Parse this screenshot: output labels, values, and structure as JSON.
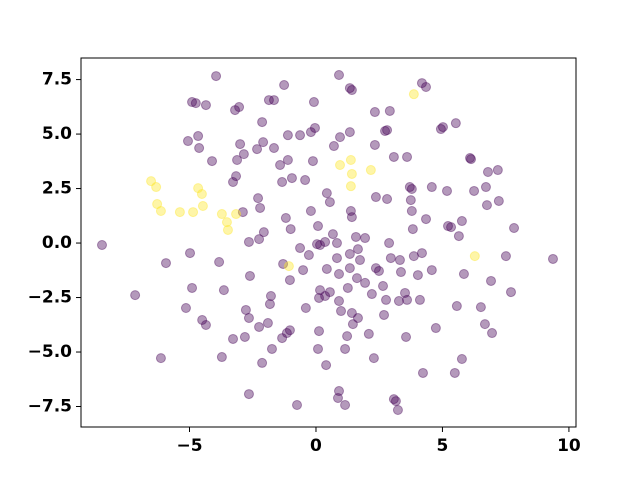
{
  "chart_data": {
    "type": "scatter",
    "alpha": 0.4,
    "xlim": [
      -9.29,
      10.28
    ],
    "ylim": [
      -8.44,
      8.49
    ],
    "xticks": [
      {
        "value": -5,
        "label": "−5"
      },
      0,
      5,
      10
    ],
    "yticks": [
      {
        "value": -7.5,
        "label": "−7.5"
      },
      {
        "value": -5,
        "label": "−5.0"
      },
      {
        "value": -2.5,
        "label": "−2.5"
      },
      {
        "value": 0,
        "label": "0.0"
      },
      2.5,
      {
        "value": 5,
        "label": "5.0"
      },
      7.5
    ],
    "series": [
      {
        "color": "#440154",
        "x": [
          -8.46,
          9.37,
          -7.15,
          -5.93,
          -6.13,
          -5.14,
          -4.9,
          -4.98,
          -4.9,
          -4.75,
          -4.35,
          -3.95,
          -5.06,
          -4.66,
          -4.62,
          -4.11,
          -4.5,
          -4.35,
          -3.83,
          -3.64,
          -3.72,
          -3.28,
          -3.2,
          -3.04,
          -3.0,
          -3.12,
          -3.16,
          -3.28,
          -2.85,
          -2.89,
          -2.65,
          -2.61,
          -2.77,
          -2.65,
          -2.81,
          -2.65,
          -2.33,
          -2.13,
          -1.86,
          -1.66,
          -2.09,
          -2.29,
          -2.21,
          -2.06,
          -2.25,
          -2.25,
          -2.13,
          -1.82,
          -1.78,
          -1.74,
          -1.9,
          -1.66,
          -1.42,
          -1.34,
          -1.19,
          -1.0,
          -1.26,
          -1.11,
          -1.11,
          -0.95,
          -1.3,
          -1.03,
          -1.34,
          -1.03,
          -1.15,
          -0.75,
          -0.43,
          -0.63,
          -0.08,
          -0.04,
          -0.2,
          -0.12,
          -0.2,
          -0.63,
          -0.51,
          -0.28,
          0.08,
          0.16,
          0.04,
          0.43,
          0.36,
          0.16,
          0.12,
          0.36,
          0.55,
          -0.4,
          0.12,
          0.08,
          0.4,
          0.43,
          0.55,
          0.67,
          0.91,
          0.95,
          0.71,
          0.83,
          0.83,
          0.91,
          0.91,
          0.99,
          0.91,
          0.87,
          1.15,
          1.15,
          1.23,
          1.26,
          1.34,
          1.34,
          1.34,
          1.42,
          1.34,
          1.42,
          1.38,
          1.58,
          1.66,
          1.62,
          1.66,
          1.46,
          1.42,
          1.74,
          1.94,
          1.94,
          2.21,
          2.29,
          2.09,
          2.33,
          2.33,
          2.37,
          2.37,
          2.49,
          2.77,
          2.69,
          2.65,
          2.92,
          2.81,
          2.73,
          2.81,
          2.89,
          2.96,
          3.32,
          3.08,
          3.08,
          3.24,
          3.16,
          3.28,
          3.36,
          3.52,
          3.56,
          3.6,
          3.71,
          3.79,
          3.75,
          3.6,
          3.79,
          3.83,
          3.87,
          4.03,
          4.11,
          4.23,
          4.19,
          4.35,
          4.19,
          4.35,
          4.58,
          4.58,
          4.74,
          4.94,
          5.02,
          5.18,
          5.22,
          5.34,
          5.53,
          5.57,
          5.65,
          5.77,
          5.77,
          5.85,
          6.13,
          6.09,
          6.25,
          6.52,
          6.68,
          6.72,
          6.8,
          6.76,
          6.92,
          6.96,
          7.19,
          7.23,
          7.51,
          7.71,
          7.83,
          5.49
        ],
        "y": [
          -0.09,
          -0.73,
          -2.39,
          -0.92,
          -5.28,
          -2.98,
          -2.06,
          -0.46,
          6.47,
          6.42,
          6.33,
          7.66,
          4.68,
          4.91,
          4.36,
          3.76,
          -3.53,
          -3.76,
          -0.87,
          -2.16,
          -5.23,
          -4.4,
          6.1,
          6.24,
          4.54,
          3.81,
          3.07,
          2.8,
          4.08,
          1.42,
          0.05,
          -1.51,
          -3.07,
          -3.44,
          -4.31,
          -6.93,
          4.31,
          5.55,
          6.56,
          6.56,
          4.63,
          2.06,
          1.61,
          0.5,
          0.18,
          -3.85,
          -5.5,
          -2.8,
          -2.43,
          -4.86,
          -3.67,
          4.36,
          3.58,
          2.8,
          1.15,
          0.64,
          7.25,
          4.95,
          3.81,
          2.98,
          -0.96,
          -1.7,
          -4.36,
          -4.0,
          -4.13,
          -7.43,
          2.89,
          4.95,
          6.47,
          5.28,
          5.09,
          3.76,
          1.47,
          -0.23,
          -1.24,
          -0.55,
          0.78,
          -0.09,
          -0.05,
          -1.19,
          0.05,
          -2.16,
          -2.52,
          -2.43,
          -2.25,
          -2.98,
          -4.04,
          -4.86,
          -5.6,
          2.29,
          1.88,
          0.41,
          7.71,
          4.86,
          4.45,
          0.0,
          -0.69,
          -1.42,
          -2.66,
          -3.12,
          -6.79,
          -7.11,
          -7.43,
          -4.86,
          -4.27,
          -2.06,
          -1.15,
          -0.5,
          7.11,
          7.02,
          5.09,
          1.19,
          1.47,
          0.28,
          -0.28,
          -1.61,
          -3.44,
          -3.72,
          -3.21,
          -0.78,
          0.23,
          -1.83,
          -2.34,
          -5.28,
          -4.17,
          6.01,
          4.5,
          2.11,
          -1.15,
          -1.28,
          -2.61,
          -3.3,
          -1.97,
          6.06,
          5.18,
          5.14,
          2.02,
          0.0,
          -0.69,
          -0.78,
          3.95,
          -7.16,
          -7.66,
          -7.25,
          -2.66,
          -1.33,
          -2.29,
          -4.31,
          -2.61,
          2.57,
          2.48,
          1.97,
          3.95,
          1.47,
          0.64,
          -0.6,
          -1.47,
          -2.61,
          -5.96,
          -0.46,
          7.16,
          7.34,
          1.1,
          2.57,
          -1.24,
          -3.9,
          5.23,
          5.32,
          2.39,
          0.78,
          0.73,
          5.5,
          -2.89,
          0.32,
          -5.32,
          1.01,
          -1.42,
          3.85,
          3.9,
          2.39,
          -2.94,
          -3.72,
          2.57,
          3.26,
          1.74,
          -1.74,
          -4.13,
          3.35,
          1.93,
          -0.6,
          -2.25,
          0.69,
          -5.96
        ]
      },
      {
        "color": "#fde725",
        "x": [
          -6.52,
          -6.32,
          -6.28,
          -6.13,
          -5.38,
          -4.86,
          -4.66,
          -4.51,
          -4.47,
          -3.72,
          -3.52,
          -3.16,
          -3.48,
          -1.07,
          0.95,
          1.38,
          1.42,
          1.38,
          2.17,
          3.87,
          6.28
        ],
        "y": [
          2.84,
          2.57,
          1.79,
          1.47,
          1.42,
          1.42,
          2.52,
          2.25,
          1.7,
          1.33,
          0.96,
          1.33,
          0.6,
          -1.06,
          3.58,
          3.81,
          3.17,
          2.61,
          3.35,
          6.83,
          -0.6
        ]
      }
    ]
  }
}
